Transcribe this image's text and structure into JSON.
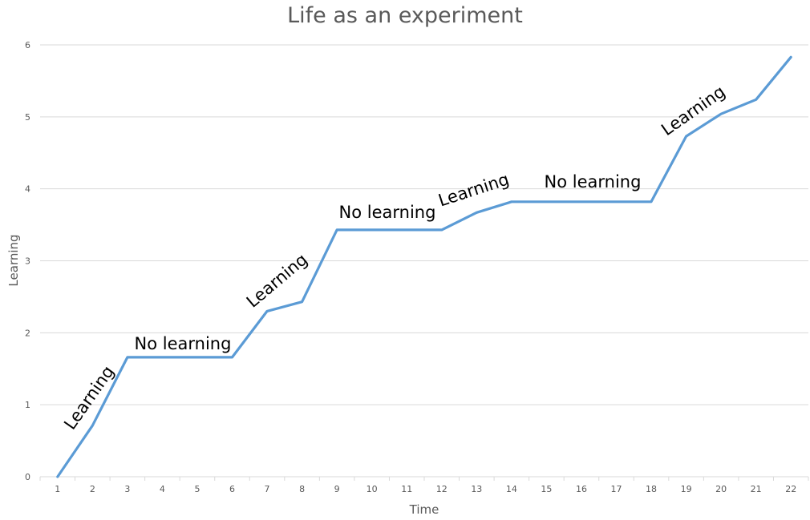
{
  "chart_data": {
    "type": "line",
    "title": "Life as an experiment",
    "xlabel": "Time",
    "ylabel": "Learning",
    "categories": [
      "1",
      "2",
      "3",
      "4",
      "5",
      "6",
      "7",
      "8",
      "9",
      "10",
      "11",
      "12",
      "13",
      "14",
      "15",
      "16",
      "17",
      "18",
      "19",
      "20",
      "21",
      "22"
    ],
    "series": [
      {
        "name": "Learning",
        "color": "#5B9BD5",
        "values": [
          0,
          0.71,
          1.66,
          1.66,
          1.66,
          1.66,
          2.3,
          2.43,
          3.43,
          3.43,
          3.43,
          3.43,
          3.67,
          3.82,
          3.82,
          3.82,
          3.82,
          3.82,
          4.73,
          5.04,
          5.24,
          5.83
        ]
      }
    ],
    "ylim": [
      0,
      6
    ],
    "yticks": [
      0,
      1,
      2,
      3,
      4,
      5,
      6
    ],
    "grid": true,
    "legend": "none",
    "annotations": [
      {
        "text": "Learning",
        "x": 112,
        "y": 497,
        "rotate": -55
      },
      {
        "text": "No learning",
        "x": 228,
        "y": 430,
        "rotate": 0
      },
      {
        "text": "Learning",
        "x": 346,
        "y": 351,
        "rotate": -40
      },
      {
        "text": "No learning",
        "x": 483,
        "y": 266,
        "rotate": 0
      },
      {
        "text": "Learning",
        "x": 591,
        "y": 238,
        "rotate": -18
      },
      {
        "text": "No learning",
        "x": 739,
        "y": 228,
        "rotate": 0
      },
      {
        "text": "Learning",
        "x": 865,
        "y": 139,
        "rotate": -35
      }
    ]
  }
}
